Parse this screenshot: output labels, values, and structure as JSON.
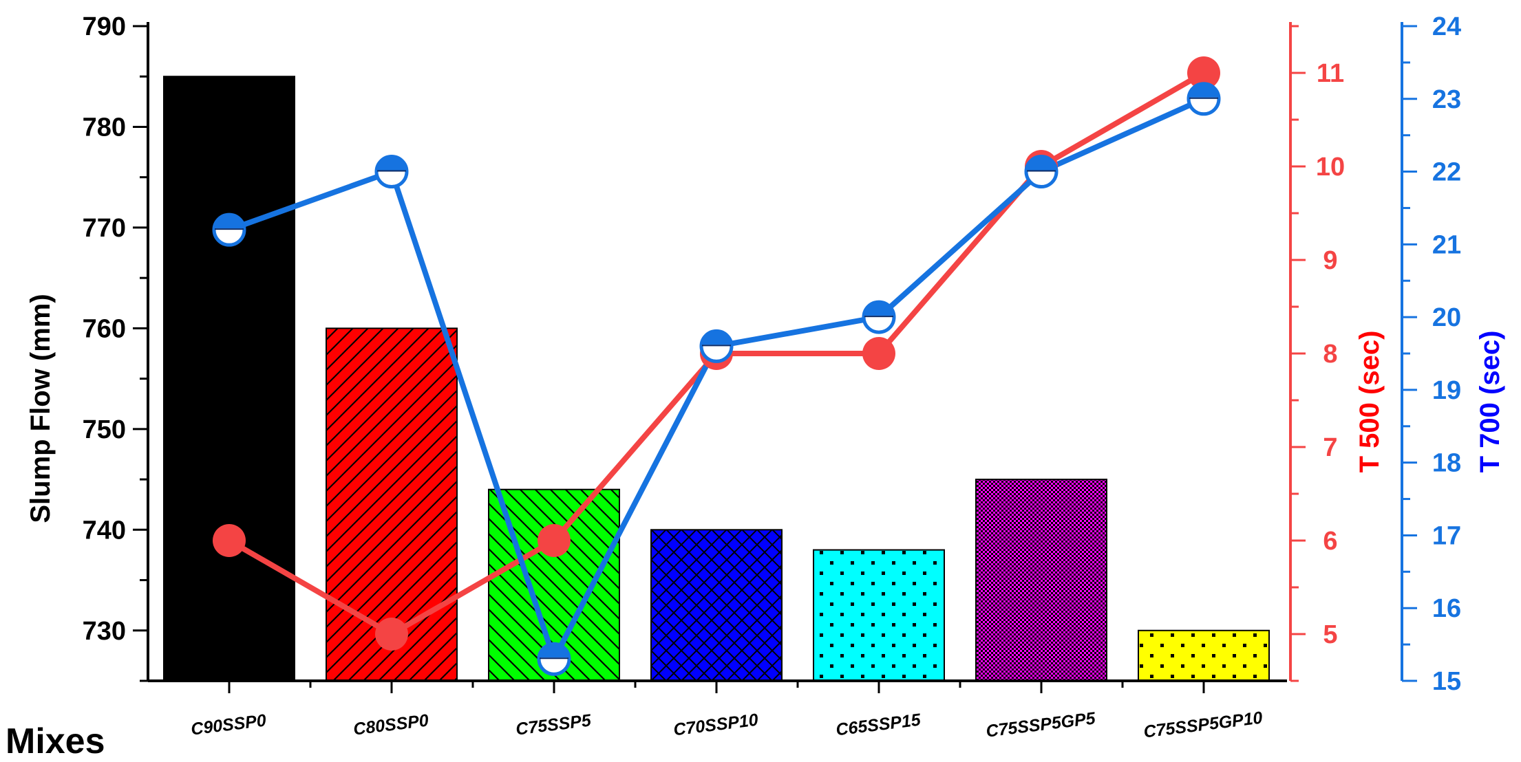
{
  "chart_data": {
    "type": "bar",
    "categories": [
      "C90SSP0",
      "C80SSP0",
      "C75SSP5",
      "C70SSP10",
      "C65SSP15",
      "C75SSP5GP5",
      "C75SSP5GP10"
    ],
    "xlabel": "Mixes",
    "ylabel": "Slump Flow (mm)",
    "ylim": [
      725,
      790
    ],
    "yticks": [
      730,
      740,
      750,
      760,
      770,
      780,
      790
    ],
    "bars": {
      "values": [
        785,
        760,
        744,
        740,
        738,
        745,
        730
      ],
      "colors": [
        "#000000",
        "#ff0000",
        "#00ff00",
        "#0000ff",
        "#00ffff",
        "#ff00ff",
        "#ffff00"
      ],
      "patterns": [
        "solid",
        "diagonal-up",
        "diagonal-down",
        "crosshatch",
        "sparse-dots",
        "dense-checker",
        "sparse-dots"
      ]
    },
    "series": [
      {
        "name": "T 500 (sec)",
        "axis": "right-1",
        "color": "#f44444",
        "marker": "circle",
        "values": [
          6,
          5,
          6,
          8,
          8,
          10,
          11
        ],
        "ylim": [
          4.5,
          11.5
        ],
        "yticks": [
          5,
          6,
          7,
          8,
          9,
          10,
          11
        ]
      },
      {
        "name": "T 700 (sec)",
        "axis": "right-2",
        "color": "#1673e0",
        "marker": "half-filled-circle",
        "values": [
          21.2,
          22.0,
          15.3,
          19.6,
          20.0,
          22.0,
          23.0
        ],
        "ylim": [
          15,
          24
        ],
        "yticks": [
          15,
          16,
          17,
          18,
          19,
          20,
          21,
          22,
          23,
          24
        ]
      }
    ],
    "legend": "none",
    "grid": false
  }
}
